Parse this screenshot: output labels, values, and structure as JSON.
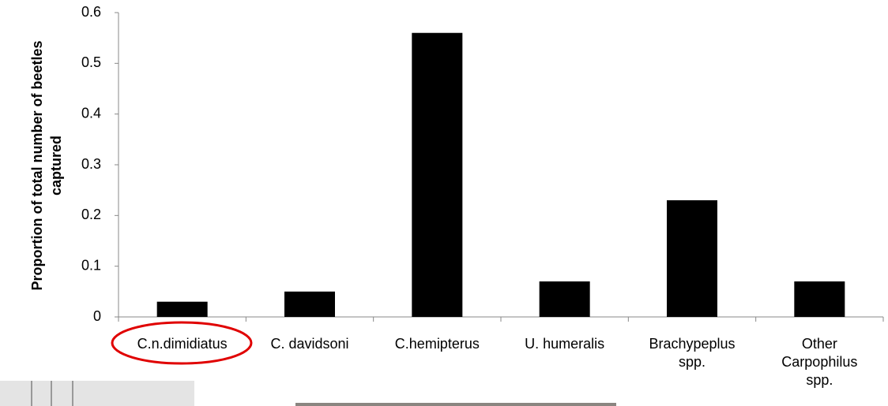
{
  "chart_data": {
    "type": "bar",
    "ylabel": [
      "Proportion of total number of beetles",
      "captured"
    ],
    "categories": [
      "C.n.dimidiatus",
      "C. davidsoni",
      "C.hemipterus",
      "U. humeralis",
      "Brachypeplus\nspp.",
      "Other\nCarpophilus\nspp."
    ],
    "values": [
      0.03,
      0.05,
      0.56,
      0.07,
      0.23,
      0.07
    ],
    "color": "#000000",
    "ylim": [
      0,
      0.6
    ],
    "yticks": [
      0,
      0.1,
      0.2,
      0.3,
      0.4,
      0.5,
      0.6
    ],
    "grid": false
  }
}
